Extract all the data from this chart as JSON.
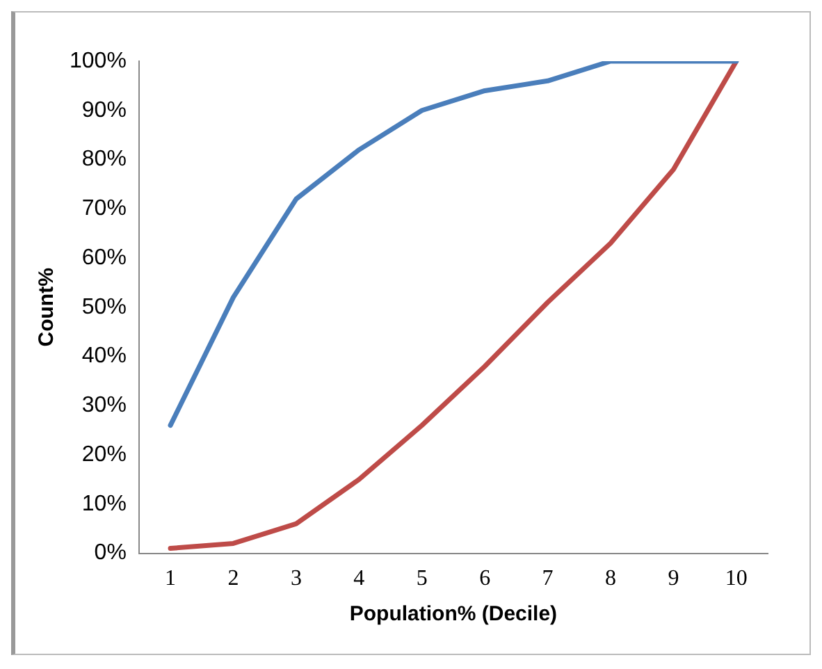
{
  "chart_data": {
    "type": "line",
    "xlabel": "Population% (Decile)",
    "ylabel": "Count%",
    "categories": [
      "1",
      "2",
      "3",
      "4",
      "5",
      "6",
      "7",
      "8",
      "9",
      "10"
    ],
    "series": [
      {
        "color": "#4a7ebb",
        "values": [
          26,
          52,
          72,
          82,
          90,
          94,
          96,
          100,
          100,
          100
        ]
      },
      {
        "color": "#be4b48",
        "values": [
          1,
          2,
          6,
          15,
          26,
          38,
          51,
          63,
          78,
          100
        ]
      }
    ],
    "ylim": [
      0,
      100
    ],
    "yticks": [
      {
        "value": 0,
        "label": "0%"
      },
      {
        "value": 10,
        "label": "10%"
      },
      {
        "value": 20,
        "label": "20%"
      },
      {
        "value": 30,
        "label": "30%"
      },
      {
        "value": 40,
        "label": "40%"
      },
      {
        "value": 50,
        "label": "50%"
      },
      {
        "value": 60,
        "label": "60%"
      },
      {
        "value": 70,
        "label": "70%"
      },
      {
        "value": 80,
        "label": "80%"
      },
      {
        "value": 90,
        "label": "90%"
      },
      {
        "value": 100,
        "label": "100%"
      }
    ],
    "grid": false,
    "legend": false,
    "marker": "none",
    "line_style": "solid"
  }
}
